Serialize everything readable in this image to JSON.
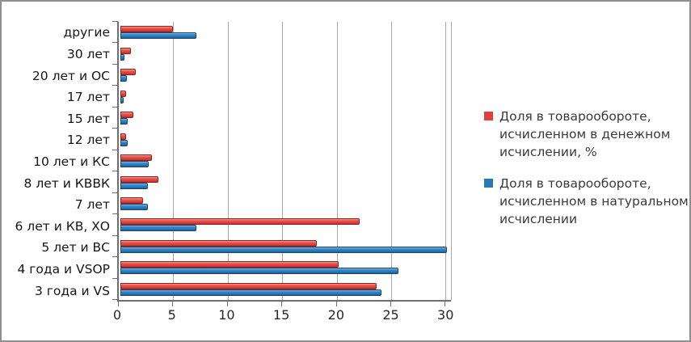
{
  "window": {
    "background_color": "#ffffff",
    "border_color": "#8f8f8f"
  },
  "chart_data": {
    "type": "bar",
    "orientation": "horizontal",
    "title": "",
    "xlabel": "",
    "ylabel": "",
    "grid": true,
    "legend_position": "right",
    "xlim": [
      0,
      30.5
    ],
    "x_ticks": [
      0,
      5,
      10,
      15,
      20,
      25,
      30
    ],
    "categories_top_to_bottom": [
      "другие",
      "30 лет",
      "20 лет и ОС",
      "17 лет",
      "15 лет",
      "12 лет",
      "10 лет и КС",
      "8 лет и КВВК",
      "7 лет",
      "6 лет и КВ, ХО",
      "5 лет и ВС",
      "4 года и VSOP",
      "3 года и VS"
    ],
    "series": [
      {
        "name": "Доля в товарообороте, исчисленном в денежном исчислении, %",
        "color": "#df4038",
        "values": [
          4.8,
          1.0,
          1.4,
          0.5,
          1.2,
          0.5,
          2.9,
          3.5,
          2.1,
          22.0,
          18.0,
          20.0,
          23.5
        ]
      },
      {
        "name": "Доля в товарообороте, исчисленном в натуральном исчислении",
        "color": "#2a77b8",
        "values": [
          7.0,
          0.4,
          0.6,
          0.3,
          0.7,
          0.7,
          2.6,
          2.5,
          2.5,
          7.0,
          30.0,
          25.5,
          24.0
        ]
      }
    ],
    "axis_color": "#6f6f6f",
    "gridline_color": "#a8a8a8"
  }
}
